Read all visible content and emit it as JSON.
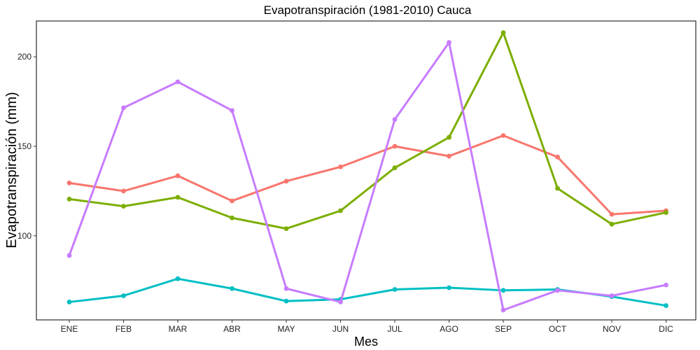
{
  "chart_data": {
    "type": "line",
    "title": "Evapotranspiración (1981-2010)  Cauca",
    "xlabel": "Mes",
    "ylabel": "Evapotranspiración (mm)",
    "categories": [
      "ENE",
      "FEB",
      "MAR",
      "ABR",
      "MAY",
      "JUN",
      "JUL",
      "AGO",
      "SEP",
      "OCT",
      "NOV",
      "DIC"
    ],
    "ylim": [
      53,
      220
    ],
    "yticks": [
      100,
      150,
      200
    ],
    "grid": false,
    "legend": "none",
    "series": [
      {
        "color": "#F8766D",
        "values": [
          129.5,
          125,
          133.5,
          119.5,
          130.5,
          138.5,
          150,
          144.5,
          156,
          144,
          112,
          114
        ]
      },
      {
        "color": "#7CAE00",
        "values": [
          120.5,
          116.5,
          121.5,
          110,
          104,
          114,
          138,
          155,
          213.5,
          126.5,
          106.5,
          113
        ]
      },
      {
        "color": "#00BFC4",
        "values": [
          63,
          66.5,
          76,
          70.5,
          63.5,
          64.5,
          70,
          71,
          69.5,
          70,
          66,
          61
        ]
      },
      {
        "color": "#C77CFF",
        "values": [
          89,
          171.5,
          186,
          170,
          70.5,
          63,
          165,
          208,
          58.5,
          69.5,
          66.5,
          72.5
        ]
      }
    ]
  }
}
